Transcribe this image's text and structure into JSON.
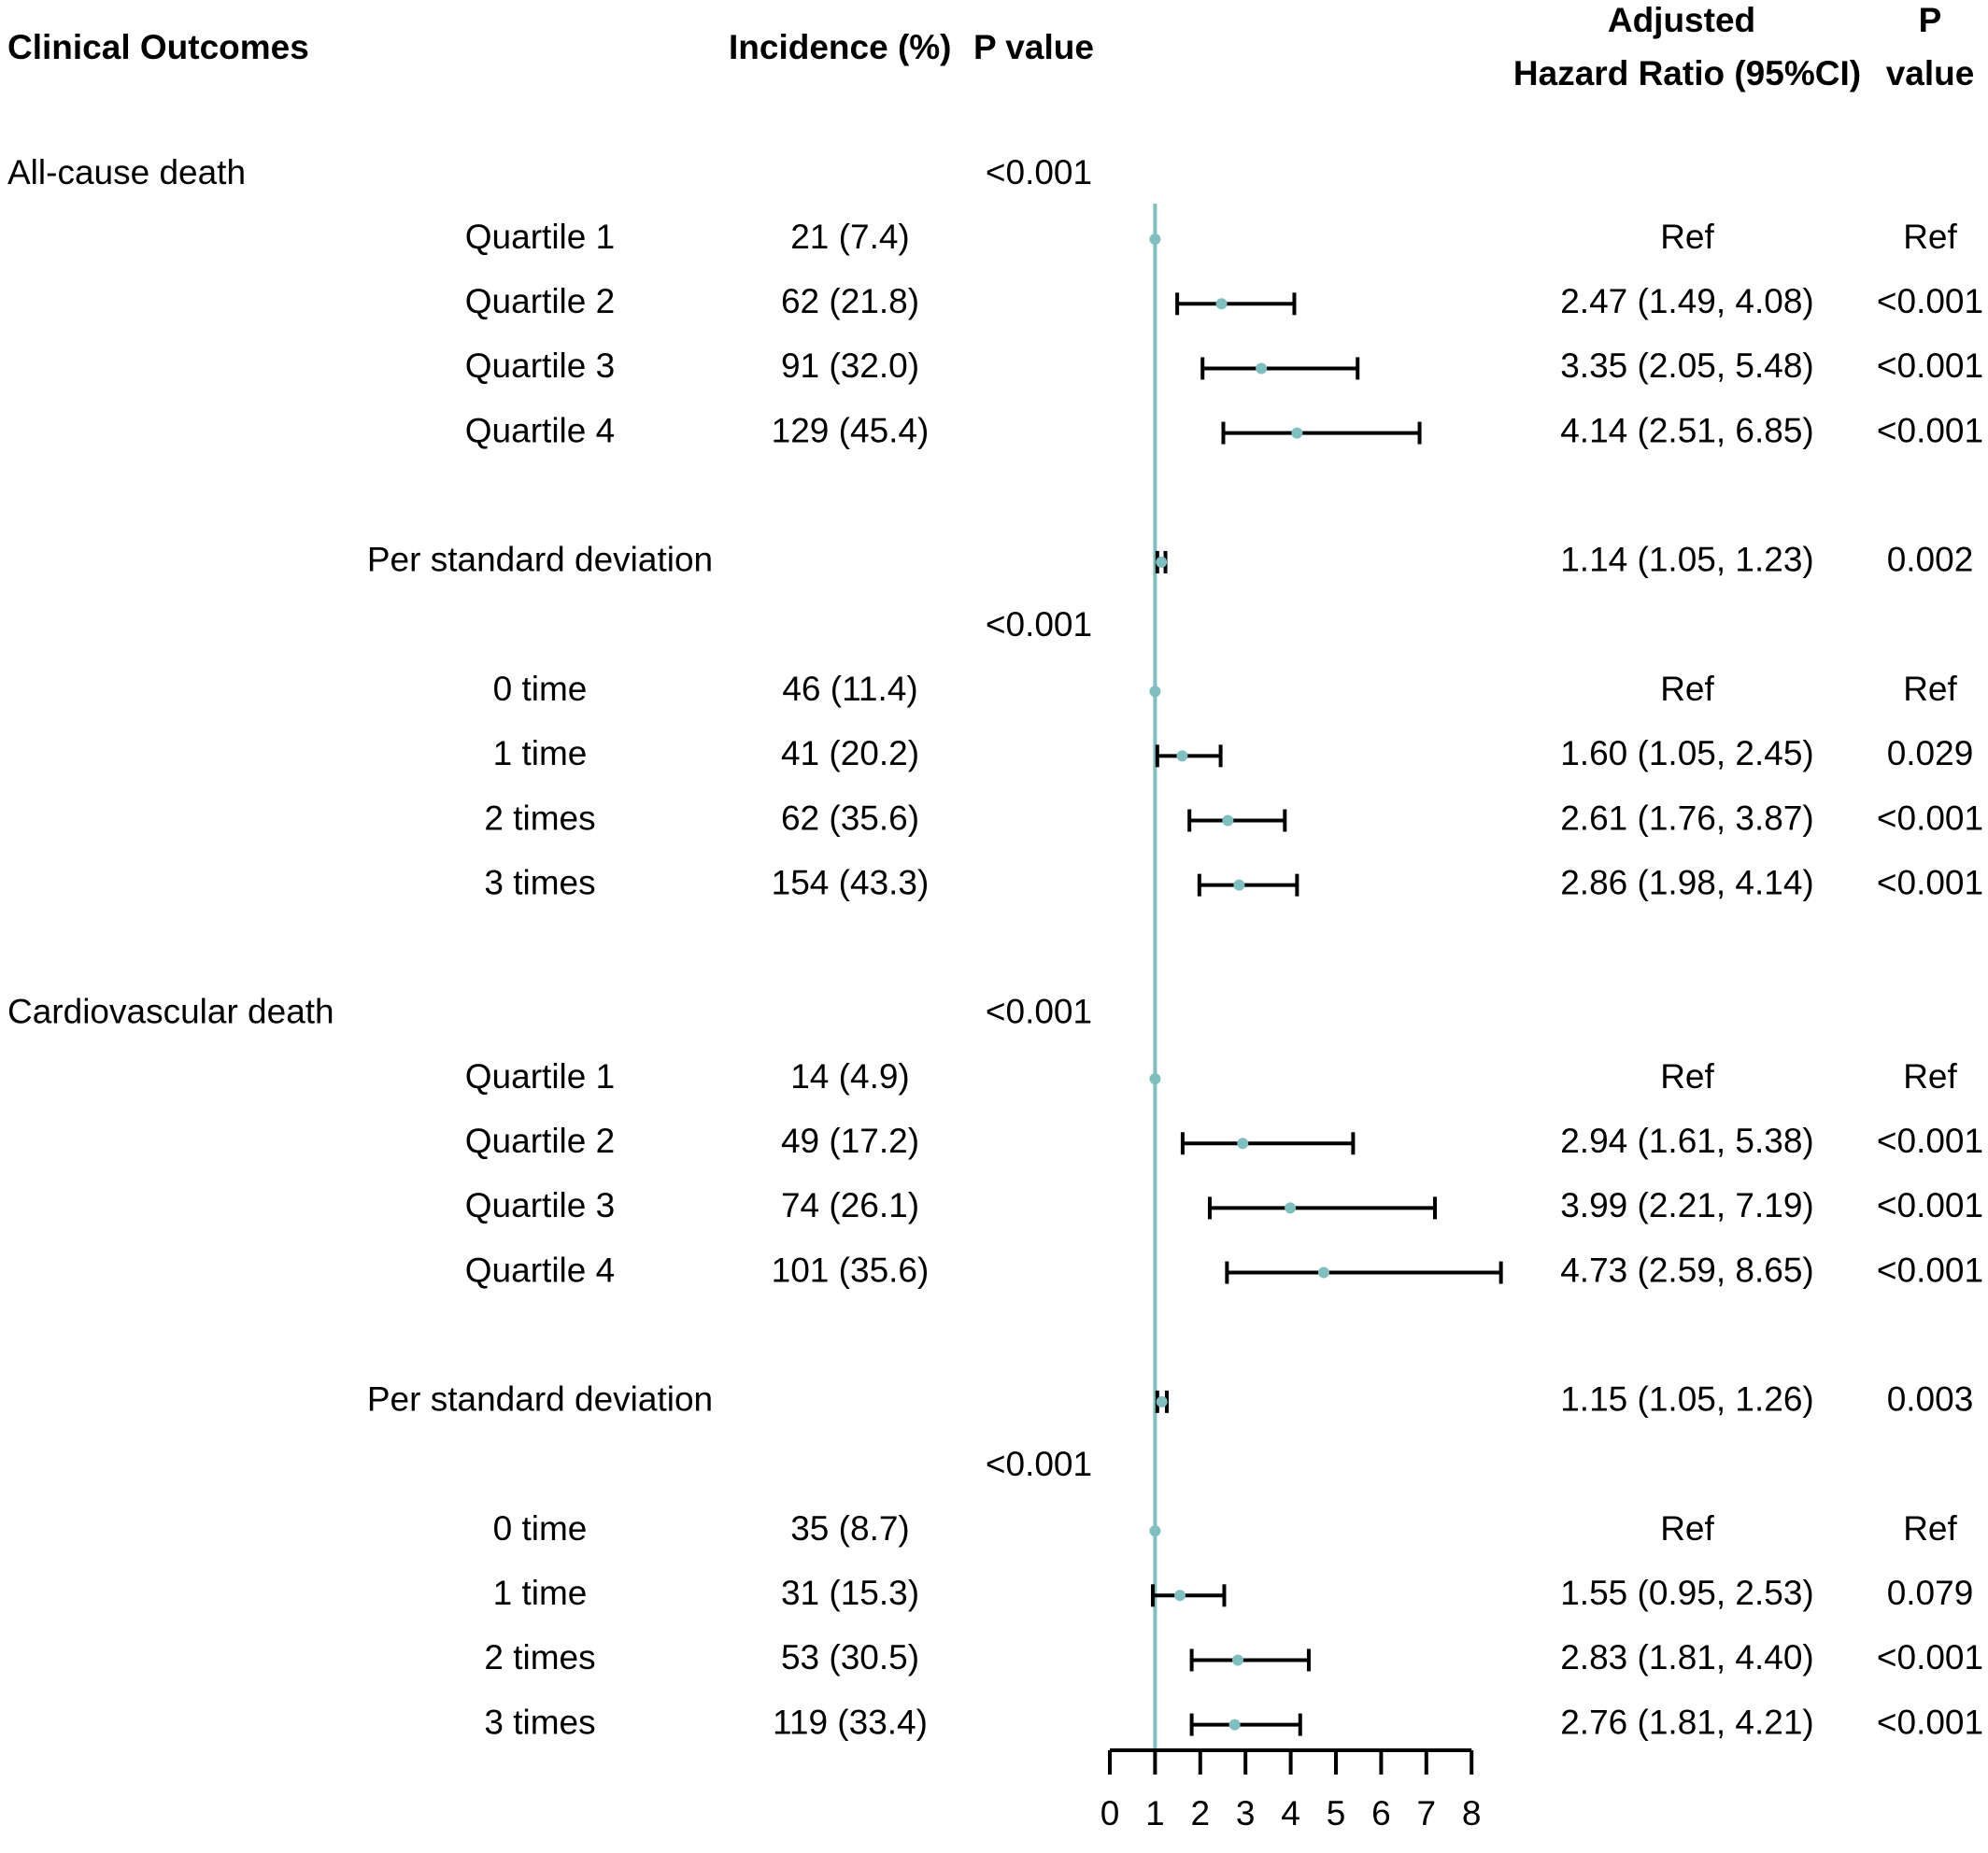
{
  "headers": {
    "outcomes": "Clinical Outcomes",
    "incidence": "Incidence (%)",
    "pvalue": "P value",
    "hr_line1": "Adjusted",
    "hr_line2": "Hazard Ratio (95%CI)",
    "p_line1": "P",
    "p_line2": "value"
  },
  "colors": {
    "reference_line": "#7fbfc0",
    "point": "#7fbfc0",
    "ci": "#000000",
    "text": "#000000"
  },
  "chart_data": {
    "type": "forest",
    "title": "",
    "xlabel": "",
    "ylabel": "",
    "xlim": [
      0,
      8
    ],
    "reference_value": 1,
    "x_ticks": [
      0,
      1,
      2,
      3,
      4,
      5,
      6,
      7,
      8
    ],
    "rows": [
      {
        "kind": "section",
        "label": "All-cause death",
        "pvalue": "<0.001"
      },
      {
        "kind": "item",
        "label": "Quartile 1",
        "incidence": "21 (7.4)",
        "hr": 1,
        "hr_text": "Ref",
        "p": "Ref"
      },
      {
        "kind": "item",
        "label": "Quartile 2",
        "incidence": "62 (21.8)",
        "hr": 2.47,
        "lo": 1.49,
        "hi": 4.08,
        "hr_text": "2.47 (1.49, 4.08)",
        "p": "<0.001"
      },
      {
        "kind": "item",
        "label": "Quartile 3",
        "incidence": "91 (32.0)",
        "hr": 3.35,
        "lo": 2.05,
        "hi": 5.48,
        "hr_text": "3.35 (2.05, 5.48)",
        "p": "<0.001"
      },
      {
        "kind": "item",
        "label": "Quartile 4",
        "incidence": "129 (45.4)",
        "hr": 4.14,
        "lo": 2.51,
        "hi": 6.85,
        "hr_text": "4.14 (2.51, 6.85)",
        "p": "<0.001"
      },
      {
        "kind": "blank"
      },
      {
        "kind": "item",
        "label": "Per standard deviation",
        "incidence": "",
        "hr": 1.14,
        "lo": 1.05,
        "hi": 1.23,
        "hr_text": "1.14 (1.05, 1.23)",
        "p": "0.002"
      },
      {
        "kind": "section",
        "label": "",
        "pvalue": "<0.001"
      },
      {
        "kind": "item",
        "label": "0 time",
        "incidence": "46 (11.4)",
        "hr": 1,
        "hr_text": "Ref",
        "p": "Ref"
      },
      {
        "kind": "item",
        "label": "1 time",
        "incidence": "41 (20.2)",
        "hr": 1.6,
        "lo": 1.05,
        "hi": 2.45,
        "hr_text": "1.60 (1.05, 2.45)",
        "p": "0.029"
      },
      {
        "kind": "item",
        "label": "2 times",
        "incidence": "62 (35.6)",
        "hr": 2.61,
        "lo": 1.76,
        "hi": 3.87,
        "hr_text": "2.61 (1.76, 3.87)",
        "p": "<0.001"
      },
      {
        "kind": "item",
        "label": "3 times",
        "incidence": "154 (43.3)",
        "hr": 2.86,
        "lo": 1.98,
        "hi": 4.14,
        "hr_text": "2.86 (1.98, 4.14)",
        "p": "<0.001"
      },
      {
        "kind": "blank"
      },
      {
        "kind": "section",
        "label": "Cardiovascular death",
        "pvalue": "<0.001"
      },
      {
        "kind": "item",
        "label": "Quartile 1",
        "incidence": "14 (4.9)",
        "hr": 1,
        "hr_text": "Ref",
        "p": "Ref"
      },
      {
        "kind": "item",
        "label": "Quartile 2",
        "incidence": "49 (17.2)",
        "hr": 2.94,
        "lo": 1.61,
        "hi": 5.38,
        "hr_text": "2.94 (1.61, 5.38)",
        "p": "<0.001"
      },
      {
        "kind": "item",
        "label": "Quartile 3",
        "incidence": "74 (26.1)",
        "hr": 3.99,
        "lo": 2.21,
        "hi": 7.19,
        "hr_text": "3.99 (2.21, 7.19)",
        "p": "<0.001"
      },
      {
        "kind": "item",
        "label": "Quartile 4",
        "incidence": "101 (35.6)",
        "hr": 4.73,
        "lo": 2.59,
        "hi": 8.65,
        "hr_text": "4.73 (2.59, 8.65)",
        "p": "<0.001"
      },
      {
        "kind": "blank"
      },
      {
        "kind": "item",
        "label": "Per standard deviation",
        "incidence": "",
        "hr": 1.15,
        "lo": 1.05,
        "hi": 1.26,
        "hr_text": "1.15 (1.05, 1.26)",
        "p": "0.003"
      },
      {
        "kind": "section",
        "label": "",
        "pvalue": "<0.001"
      },
      {
        "kind": "item",
        "label": "0 time",
        "incidence": "35 (8.7)",
        "hr": 1,
        "hr_text": "Ref",
        "p": "Ref"
      },
      {
        "kind": "item",
        "label": "1 time",
        "incidence": "31 (15.3)",
        "hr": 1.55,
        "lo": 0.95,
        "hi": 2.53,
        "hr_text": "1.55 (0.95, 2.53)",
        "p": "0.079"
      },
      {
        "kind": "item",
        "label": "2 times",
        "incidence": "53 (30.5)",
        "hr": 2.83,
        "lo": 1.81,
        "hi": 4.4,
        "hr_text": "2.83 (1.81, 4.40)",
        "p": "<0.001"
      },
      {
        "kind": "item",
        "label": "3 times",
        "incidence": "119 (33.4)",
        "hr": 2.76,
        "lo": 1.81,
        "hi": 4.21,
        "hr_text": "2.76 (1.81, 4.21)",
        "p": "<0.001"
      }
    ]
  }
}
